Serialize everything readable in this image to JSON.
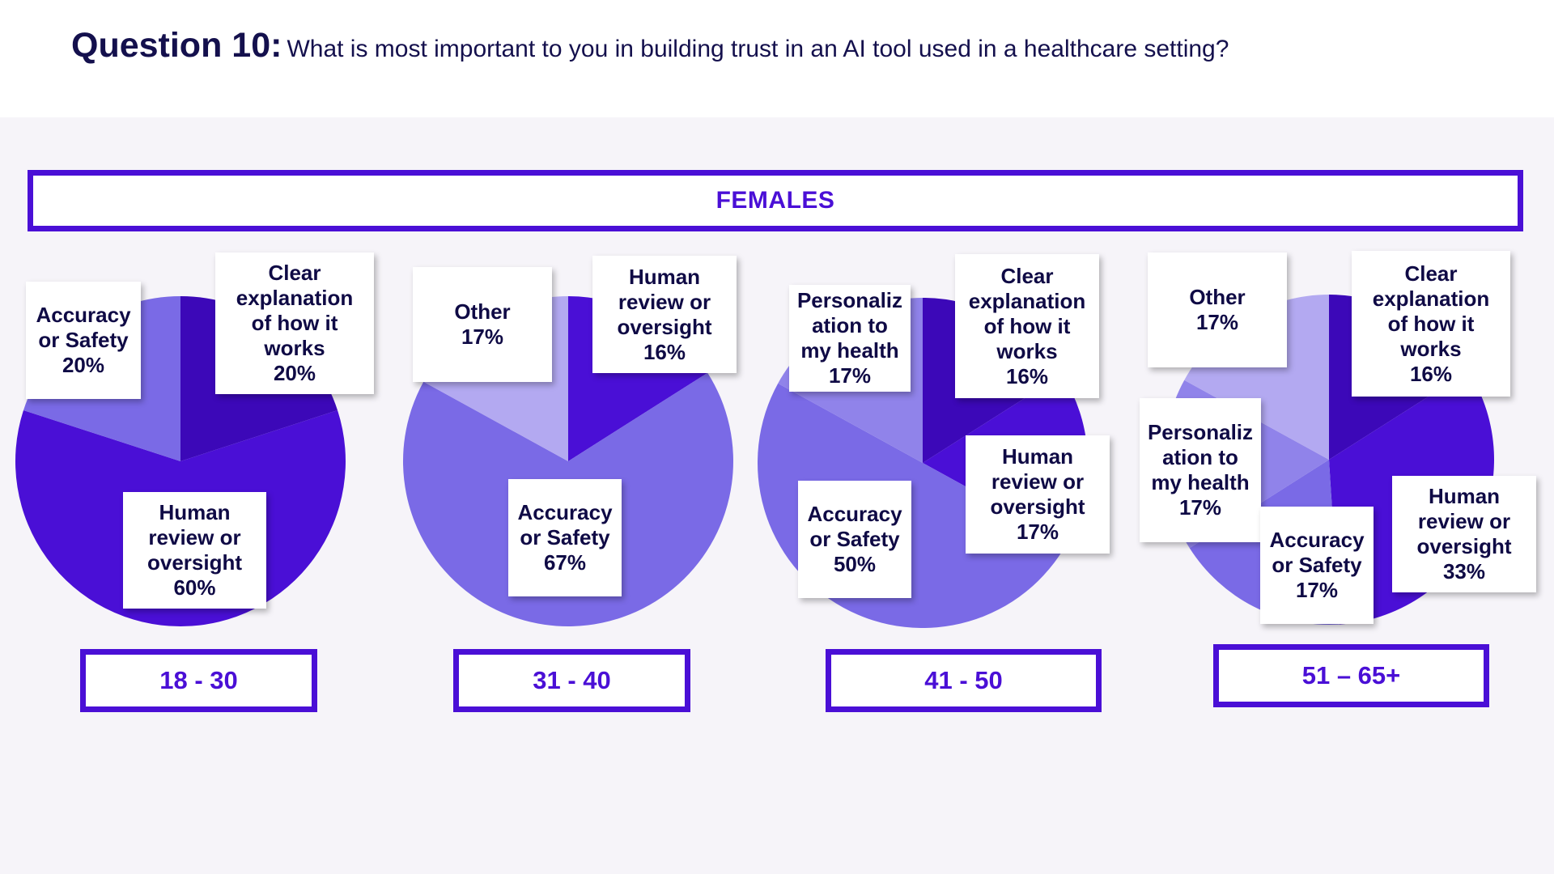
{
  "title": {
    "question": "Question 10:",
    "text": "What is most important to you in building trust in an AI tool used in a healthcare setting?"
  },
  "banner": "FEMALES",
  "colors": {
    "dark": "#4a0fd6",
    "darkest": "#3c08b8",
    "medium": "#7a6ae6",
    "mediumlight": "#9083ea",
    "light": "#b3a9f1",
    "text": "#0f0a45"
  },
  "chart_data": [
    {
      "type": "pie",
      "group": "18 - 30",
      "slices": [
        {
          "label": "Clear explanation of how it works",
          "value": 20,
          "percent_text": "20%",
          "color_key": "darkest"
        },
        {
          "label": "Human review or oversight",
          "value": 60,
          "percent_text": "60%",
          "color_key": "dark"
        },
        {
          "label": "Accuracy or Safety",
          "value": 20,
          "percent_text": "20%",
          "color_key": "medium"
        }
      ]
    },
    {
      "type": "pie",
      "group": "31 - 40",
      "slices": [
        {
          "label": "Human review or oversight",
          "value": 16,
          "percent_text": "16%",
          "color_key": "dark"
        },
        {
          "label": "Accuracy or Safety",
          "value": 67,
          "percent_text": "67%",
          "color_key": "medium"
        },
        {
          "label": "Other",
          "value": 17,
          "percent_text": "17%",
          "color_key": "light"
        }
      ]
    },
    {
      "type": "pie",
      "group": "41 - 50",
      "slices": [
        {
          "label": "Clear explanation of how it works",
          "value": 16,
          "percent_text": "16%",
          "color_key": "darkest"
        },
        {
          "label": "Human review or oversight",
          "value": 17,
          "percent_text": "17%",
          "color_key": "dark"
        },
        {
          "label": "Accuracy or Safety",
          "value": 50,
          "percent_text": "50%",
          "color_key": "medium"
        },
        {
          "label": "Personalization to my health",
          "value": 17,
          "percent_text": "17%",
          "color_key": "mediumlight"
        }
      ]
    },
    {
      "type": "pie",
      "group": "51 – 65+",
      "slices": [
        {
          "label": "Clear explanation of how it works",
          "value": 16,
          "percent_text": "16%",
          "color_key": "darkest"
        },
        {
          "label": "Human review or oversight",
          "value": 33,
          "percent_text": "33%",
          "color_key": "dark"
        },
        {
          "label": "Accuracy or Safety",
          "value": 17,
          "percent_text": "17%",
          "color_key": "medium"
        },
        {
          "label": "Personalization to my health",
          "value": 17,
          "percent_text": "17%",
          "color_key": "mediumlight"
        },
        {
          "label": "Other",
          "value": 17,
          "percent_text": "17%",
          "color_key": "light"
        }
      ]
    }
  ],
  "labels": {
    "c1": {
      "accuracy": {
        "l1": "Accuracy",
        "l2": "or Safety",
        "l3": "20%"
      },
      "clear": {
        "l1": "Clear",
        "l2": "explanation",
        "l3": "of how it",
        "l4": "works",
        "l5": "20%"
      },
      "human": {
        "l1": "Human",
        "l2": "review or",
        "l3": "oversight",
        "l4": "60%"
      }
    },
    "c2": {
      "other": {
        "l1": "Other",
        "l2": "17%"
      },
      "human": {
        "l1": "Human",
        "l2": "review or",
        "l3": "oversight",
        "l4": "16%"
      },
      "accuracy": {
        "l1": "Accuracy",
        "l2": "or Safety",
        "l3": "67%"
      }
    },
    "c3": {
      "personal": {
        "l1": "Personaliz",
        "l2": "ation to",
        "l3": "my health",
        "l4": "17%"
      },
      "clear": {
        "l1": "Clear",
        "l2": "explanation",
        "l3": "of how it",
        "l4": "works",
        "l5": "16%"
      },
      "human": {
        "l1": "Human",
        "l2": "review or",
        "l3": "oversight",
        "l4": "17%"
      },
      "accuracy": {
        "l1": "Accuracy",
        "l2": "or Safety",
        "l3": "50%"
      }
    },
    "c4": {
      "other": {
        "l1": "Other",
        "l2": "17%"
      },
      "clear": {
        "l1": "Clear",
        "l2": "explanation",
        "l3": "of how it",
        "l4": "works",
        "l5": "16%"
      },
      "personal": {
        "l1": "Personaliz",
        "l2": "ation to",
        "l3": "my health",
        "l4": "17%"
      },
      "human": {
        "l1": "Human",
        "l2": "review or",
        "l3": "oversight",
        "l4": "33%"
      },
      "accuracy": {
        "l1": "Accuracy",
        "l2": "or Safety",
        "l3": "17%"
      }
    }
  },
  "age_groups": [
    "18 - 30",
    "31 - 40",
    "41 - 50",
    "51 – 65+"
  ]
}
